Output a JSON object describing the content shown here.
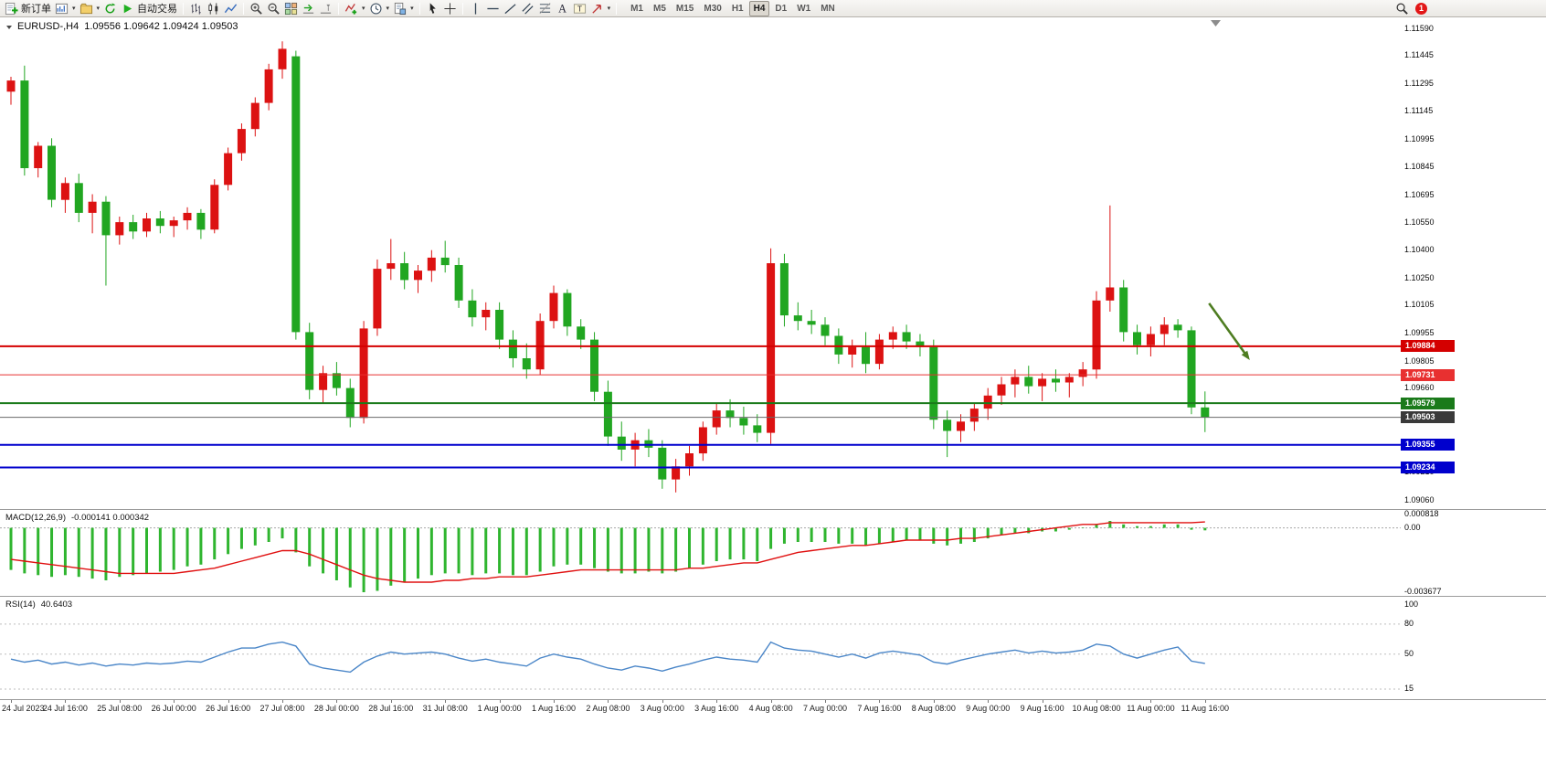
{
  "toolbar": {
    "new_order_label": "新订单",
    "autotrading_label": "自动交易",
    "timeframes": [
      "M1",
      "M5",
      "M15",
      "M30",
      "H1",
      "H4",
      "D1",
      "W1",
      "MN"
    ],
    "active_timeframe": "H4",
    "notification_badge": "1"
  },
  "chart": {
    "symbol_title": "EURUSD-,H4",
    "ohlc_title": "1.09556 1.09642 1.09424 1.09503"
  },
  "price_axis": {
    "ticks": [
      "1.11590",
      "1.11445",
      "1.11295",
      "1.11145",
      "1.10995",
      "1.10845",
      "1.10695",
      "1.10550",
      "1.10400",
      "1.10250",
      "1.10105",
      "1.09955",
      "1.09805",
      "1.09660",
      "1.09510",
      "1.09360",
      "1.09210",
      "1.09060"
    ]
  },
  "indicators": {
    "macd": {
      "label": "MACD(12,26,9)",
      "values": "-0.000141 0.000342",
      "axis": [
        "0.000818",
        "0.00",
        "-0.003677"
      ]
    },
    "rsi": {
      "label": "RSI(14)",
      "value": "40.6403",
      "axis": [
        "100",
        "80",
        "50",
        "15"
      ]
    }
  },
  "colors": {
    "up": "#dc1212",
    "down": "#21a621",
    "macd_hist": "#2fb52f",
    "macd_signal": "#e01010",
    "rsi_line": "#4a86c8",
    "current_price_line": "#6a6a6a",
    "current_price_box": "#3a3a3a",
    "arrow": "#4e7d21",
    "panel_border": "#9b9b9b",
    "axis_text": "#0a0a0a"
  },
  "chart_data": {
    "type": "candlestick",
    "symbol": "EURUSD",
    "period": "H4",
    "price_range": [
      1.0906,
      1.1159
    ],
    "label_every": 4,
    "x_labels": [
      "24 Jul 2023",
      "24 Jul 16:00",
      "25 Jul 08:00",
      "26 Jul 00:00",
      "26 Jul 16:00",
      "27 Jul 08:00",
      "28 Jul 00:00",
      "28 Jul 16:00",
      "31 Jul 08:00",
      "1 Aug 00:00",
      "1 Aug 16:00",
      "2 Aug 08:00",
      "3 Aug 00:00",
      "3 Aug 16:00",
      "4 Aug 08:00",
      "7 Aug 00:00",
      "7 Aug 16:00",
      "8 Aug 08:00",
      "9 Aug 00:00",
      "9 Aug 16:00",
      "10 Aug 08:00",
      "11 Aug 00:00",
      "11 Aug 16:00"
    ],
    "candles": [
      [
        1.1125,
        1.1133,
        1.1118,
        1.1131
      ],
      [
        1.1131,
        1.1139,
        1.108,
        1.1084
      ],
      [
        1.1084,
        1.1098,
        1.1079,
        1.1096
      ],
      [
        1.1096,
        1.11,
        1.1063,
        1.1067
      ],
      [
        1.1067,
        1.1079,
        1.106,
        1.1076
      ],
      [
        1.1076,
        1.1081,
        1.1055,
        1.106
      ],
      [
        1.106,
        1.107,
        1.1049,
        1.1066
      ],
      [
        1.1066,
        1.1069,
        1.1021,
        1.1048
      ],
      [
        1.1048,
        1.1058,
        1.1043,
        1.1055
      ],
      [
        1.1055,
        1.1059,
        1.1046,
        1.105
      ],
      [
        1.105,
        1.106,
        1.1047,
        1.1057
      ],
      [
        1.1057,
        1.1061,
        1.1049,
        1.1053
      ],
      [
        1.1053,
        1.1058,
        1.1047,
        1.1056
      ],
      [
        1.1056,
        1.1063,
        1.1051,
        1.106
      ],
      [
        1.106,
        1.1062,
        1.1046,
        1.1051
      ],
      [
        1.1051,
        1.1078,
        1.1049,
        1.1075
      ],
      [
        1.1075,
        1.1095,
        1.1072,
        1.1092
      ],
      [
        1.1092,
        1.1108,
        1.1088,
        1.1105
      ],
      [
        1.1105,
        1.1122,
        1.1101,
        1.1119
      ],
      [
        1.1119,
        1.114,
        1.1115,
        1.1137
      ],
      [
        1.1137,
        1.1152,
        1.1132,
        1.1148
      ],
      [
        1.1144,
        1.1147,
        1.0992,
        1.0996
      ],
      [
        1.0996,
        1.1001,
        1.096,
        1.0965
      ],
      [
        1.0965,
        1.0978,
        1.0958,
        1.0974
      ],
      [
        1.0974,
        1.098,
        1.0962,
        1.0966
      ],
      [
        1.0966,
        1.0971,
        1.0945,
        1.095
      ],
      [
        1.095,
        1.1002,
        1.0947,
        1.0998
      ],
      [
        1.0998,
        1.1035,
        1.0994,
        1.103
      ],
      [
        1.103,
        1.1046,
        1.1024,
        1.1033
      ],
      [
        1.1033,
        1.1039,
        1.1019,
        1.1024
      ],
      [
        1.1024,
        1.1032,
        1.1017,
        1.1029
      ],
      [
        1.1029,
        1.104,
        1.1023,
        1.1036
      ],
      [
        1.1036,
        1.1045,
        1.1028,
        1.1032
      ],
      [
        1.1032,
        1.1036,
        1.1009,
        1.1013
      ],
      [
        1.1013,
        1.1019,
        1.0999,
        1.1004
      ],
      [
        1.1004,
        1.1012,
        1.0997,
        1.1008
      ],
      [
        1.1008,
        1.1012,
        1.0987,
        1.0992
      ],
      [
        1.0992,
        1.0997,
        1.0977,
        1.0982
      ],
      [
        1.0982,
        1.099,
        1.0971,
        1.0976
      ],
      [
        1.0976,
        1.1006,
        1.0973,
        1.1002
      ],
      [
        1.1002,
        1.1021,
        1.0998,
        1.1017
      ],
      [
        1.1017,
        1.1019,
        1.0994,
        1.0999
      ],
      [
        1.0999,
        1.1003,
        1.0987,
        1.0992
      ],
      [
        1.0992,
        1.0996,
        1.0959,
        1.0964
      ],
      [
        1.0964,
        1.097,
        1.0935,
        1.094
      ],
      [
        1.094,
        1.0948,
        1.0927,
        1.0933
      ],
      [
        1.0933,
        1.0942,
        1.0924,
        1.0938
      ],
      [
        1.0938,
        1.0944,
        1.0929,
        1.0934
      ],
      [
        1.0934,
        1.0938,
        1.0912,
        1.0917
      ],
      [
        1.0917,
        1.0928,
        1.091,
        1.0924
      ],
      [
        1.0924,
        1.0935,
        1.0919,
        1.0931
      ],
      [
        1.0931,
        1.0948,
        1.0927,
        1.0945
      ],
      [
        1.0945,
        1.0958,
        1.0941,
        1.0954
      ],
      [
        1.0954,
        1.096,
        1.0945,
        1.095
      ],
      [
        1.095,
        1.0956,
        1.0941,
        1.0946
      ],
      [
        1.0946,
        1.0952,
        1.0937,
        1.0942
      ],
      [
        1.0942,
        1.1041,
        1.0936,
        1.1033
      ],
      [
        1.1033,
        1.1038,
        1.0999,
        1.1005
      ],
      [
        1.1005,
        1.1012,
        1.0997,
        1.1002
      ],
      [
        1.1002,
        1.1008,
        1.0995,
        1.1
      ],
      [
        1.1,
        1.1004,
        1.0989,
        1.0994
      ],
      [
        1.0994,
        1.0998,
        1.0979,
        1.0984
      ],
      [
        1.0984,
        1.0992,
        1.0977,
        1.0988
      ],
      [
        1.0988,
        1.0996,
        1.0974,
        1.0979
      ],
      [
        1.0979,
        1.0995,
        1.0976,
        1.0992
      ],
      [
        1.0992,
        1.0999,
        1.0987,
        1.0996
      ],
      [
        1.0996,
        1.1,
        1.0987,
        1.0991
      ],
      [
        1.0991,
        1.0995,
        1.0983,
        1.0988
      ],
      [
        1.0988,
        1.0992,
        1.0944,
        1.0949
      ],
      [
        1.0949,
        1.0954,
        1.0929,
        1.0943
      ],
      [
        1.0943,
        1.0952,
        1.0937,
        1.0948
      ],
      [
        1.0948,
        1.0958,
        1.0943,
        1.0955
      ],
      [
        1.0955,
        1.0966,
        1.0949,
        1.0962
      ],
      [
        1.0962,
        1.0972,
        1.0957,
        1.0968
      ],
      [
        1.0968,
        1.0976,
        1.0961,
        1.0972
      ],
      [
        1.0972,
        1.0978,
        1.0963,
        1.0967
      ],
      [
        1.0967,
        1.0974,
        1.0959,
        1.0971
      ],
      [
        1.0971,
        1.0976,
        1.0964,
        1.0969
      ],
      [
        1.0969,
        1.0974,
        1.0961,
        1.0972
      ],
      [
        1.0972,
        1.098,
        1.0967,
        1.0976
      ],
      [
        1.0976,
        1.1018,
        1.0971,
        1.1013
      ],
      [
        1.1013,
        1.1064,
        1.1007,
        1.102
      ],
      [
        1.102,
        1.1024,
        1.0991,
        1.0996
      ],
      [
        1.0996,
        1.1,
        1.0984,
        1.0989
      ],
      [
        1.0989,
        1.0999,
        1.0983,
        1.0995
      ],
      [
        1.0995,
        1.1004,
        1.0989,
        1.1
      ],
      [
        1.1,
        1.1003,
        1.0993,
        1.0997
      ],
      [
        1.0997,
        1.0999,
        1.0952,
        1.09556
      ],
      [
        1.09556,
        1.09642,
        1.09424,
        1.09503
      ]
    ],
    "hlines": [
      {
        "price": 1.09884,
        "color": "#d40000",
        "width": 2
      },
      {
        "price": 1.09731,
        "color": "#e83030",
        "width": 1
      },
      {
        "price": 1.09579,
        "color": "#1a7a1a",
        "width": 2
      },
      {
        "price": 1.09503,
        "color": "#6a6a6a",
        "width": 1,
        "style": "current"
      },
      {
        "price": 1.09355,
        "color": "#0000cd",
        "width": 2
      },
      {
        "price": 1.09234,
        "color": "#0000cd",
        "width": 2
      }
    ],
    "annotations": {
      "arrow": {
        "i1": 88.3,
        "p1": 1.10115,
        "i2": 91.3,
        "p2": 1.0981
      }
    },
    "macd": {
      "scale": 0.0001,
      "histogram": [
        -24,
        -26,
        -27,
        -28,
        -27,
        -28,
        -29,
        -30,
        -28,
        -27,
        -26,
        -25,
        -24,
        -22,
        -21,
        -18,
        -15,
        -12,
        -10,
        -8,
        -6,
        -14,
        -22,
        -26,
        -30,
        -34,
        -36.77,
        -36,
        -33,
        -31,
        -29,
        -27,
        -26,
        -26,
        -27,
        -26,
        -26,
        -27,
        -27,
        -25,
        -22,
        -21,
        -21,
        -23,
        -25,
        -26,
        -26,
        -25,
        -26,
        -25,
        -23,
        -21,
        -19,
        -18,
        -18,
        -19,
        -12,
        -9,
        -8,
        -8,
        -8,
        -9,
        -9,
        -10,
        -9,
        -8,
        -7,
        -7,
        -9,
        -10,
        -9,
        -8,
        -6,
        -4,
        -3,
        -3,
        -2,
        -2,
        -1,
        0,
        2,
        4,
        2,
        1,
        1,
        2,
        2,
        -1,
        -1.41
      ],
      "signal": [
        -18,
        -19,
        -20,
        -21,
        -22,
        -23,
        -24,
        -25,
        -26,
        -26,
        -26,
        -26,
        -26,
        -25,
        -24,
        -23,
        -21,
        -19,
        -17,
        -15,
        -13,
        -13,
        -15,
        -18,
        -21,
        -24,
        -27,
        -29,
        -30,
        -31,
        -31,
        -31,
        -30,
        -30,
        -29,
        -29,
        -28,
        -28,
        -28,
        -27,
        -26,
        -25,
        -24,
        -24,
        -24,
        -24,
        -24,
        -24,
        -24,
        -24,
        -23,
        -23,
        -22,
        -21,
        -20,
        -20,
        -18,
        -16,
        -14,
        -13,
        -12,
        -11,
        -10,
        -10,
        -9,
        -8,
        -7,
        -7,
        -7,
        -7,
        -6,
        -6,
        -5,
        -4,
        -3,
        -2,
        -1,
        0,
        1,
        2,
        2,
        3,
        3,
        3,
        3,
        3,
        3,
        3,
        3.42
      ]
    },
    "rsi": {
      "levels": [
        80,
        50,
        15
      ],
      "values": [
        45,
        42,
        44,
        40,
        42,
        39,
        41,
        38,
        40,
        39,
        41,
        40,
        41,
        43,
        42,
        47,
        52,
        56,
        56,
        60,
        62,
        58,
        40,
        36,
        34,
        32,
        42,
        48,
        52,
        50,
        51,
        52,
        50,
        46,
        43,
        45,
        42,
        40,
        38,
        46,
        50,
        47,
        45,
        40,
        36,
        34,
        38,
        36,
        33,
        37,
        40,
        44,
        47,
        45,
        44,
        42,
        62,
        56,
        54,
        53,
        50,
        47,
        50,
        46,
        51,
        53,
        51,
        49,
        42,
        40,
        44,
        47,
        50,
        52,
        54,
        51,
        53,
        51,
        52,
        54,
        60,
        58,
        50,
        46,
        50,
        54,
        57,
        43,
        40.64
      ]
    }
  }
}
